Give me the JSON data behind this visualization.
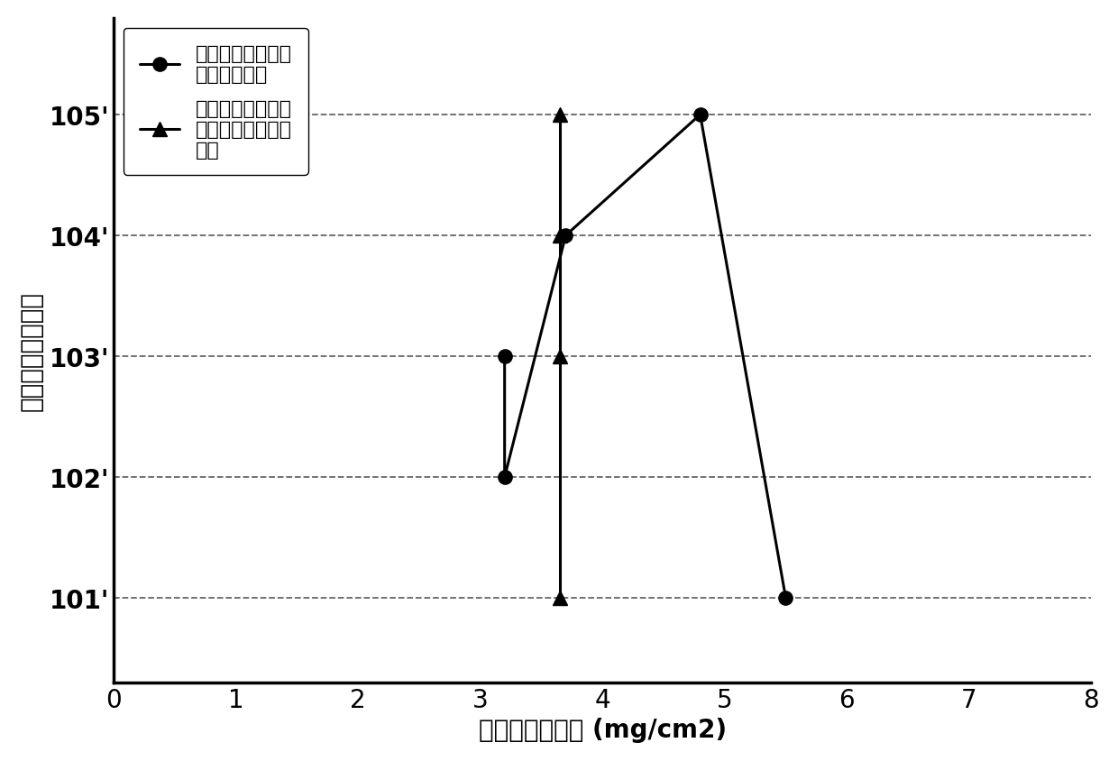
{
  "series1_name": "实施例负极各部分\n电解液吸收量",
  "series1_x": [
    3.2,
    3.2,
    3.7,
    4.8,
    5.5
  ],
  "series1_y": [
    103,
    102,
    104,
    105,
    101
  ],
  "series2_name": "根据负极孔隙率算\n出的电解液理论吸\n收量",
  "series2_x": [
    3.65,
    3.65,
    3.65,
    3.65
  ],
  "series2_y": [
    105,
    104,
    103,
    101
  ],
  "xlabel": "电解液吸收重量 (mg/cm2)",
  "ylabel": "负极极片取样位置",
  "ytick_labels": [
    "101'",
    "102'",
    "103'",
    "104'",
    "105'"
  ],
  "ytick_values": [
    101,
    102,
    103,
    104,
    105
  ],
  "xlim": [
    0,
    8
  ],
  "ylim": [
    100.3,
    105.8
  ],
  "xticks": [
    0,
    1,
    2,
    3,
    4,
    5,
    6,
    7,
    8
  ],
  "line_color": "#000000",
  "bg_color": "#ffffff",
  "marker1": "o",
  "marker2": "^",
  "markersize": 11,
  "linewidth": 2.2,
  "grid_linestyle": "--",
  "grid_color": "#000000",
  "grid_alpha": 0.6,
  "label_fontsize": 20,
  "tick_fontsize": 20,
  "legend_fontsize": 16
}
